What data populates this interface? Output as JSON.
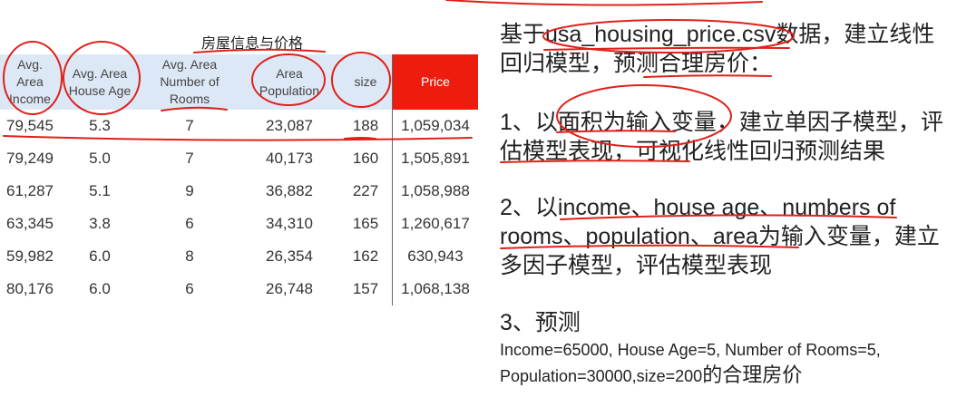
{
  "table": {
    "title": "房屋信息与价格",
    "headers": [
      {
        "label": "Avg.\nArea\nIncome"
      },
      {
        "label": "Avg. Area\nHouse Age"
      },
      {
        "label": "Avg. Area\nNumber of\nRooms"
      },
      {
        "label": "Area\nPopulation"
      },
      {
        "label": "size"
      },
      {
        "label": "Price"
      }
    ],
    "rows": [
      [
        "79,545",
        "5.3",
        "7",
        "23,087",
        "188",
        "1,059,034"
      ],
      [
        "79,249",
        "5.0",
        "7",
        "40,173",
        "160",
        "1,505,891"
      ],
      [
        "61,287",
        "5.1",
        "9",
        "36,882",
        "227",
        "1,058,988"
      ],
      [
        "63,345",
        "3.8",
        "6",
        "34,310",
        "165",
        "1,260,617"
      ],
      [
        "59,982",
        "6.0",
        "8",
        "26,354",
        "162",
        "630,943"
      ],
      [
        "80,176",
        "6.0",
        "6",
        "26,748",
        "157",
        "1,068,138"
      ]
    ]
  },
  "intro": {
    "prefix": "基于",
    "filename": "usa_housing_price.csv",
    "suffix_1": "数据，建立线性回归模型，",
    "suffix_2": "预测合理房价",
    "suffix_3": "："
  },
  "task1": {
    "prefix": "1、以",
    "highlight": "面积为输入变量",
    "rest": "，建立单因子模型，评估模型表现，可视化线性回归预测结果"
  },
  "task2": {
    "prefix": "2、以",
    "vars": "income、house age、numbers of rooms、population、area",
    "rest": "为输入变量，建立多因子模型，评估模型表现"
  },
  "task3": {
    "heading": "3、预测",
    "line1": "Income=65000, House Age=5, Number of Rooms=5,",
    "line2_prefix": "Population=30000,size=200",
    "line2_suffix": "的合理房价"
  },
  "colors": {
    "header_bg": "#dde8f6",
    "price_header_bg": "#ee1c0e",
    "annotation_red": "#e0201a"
  }
}
